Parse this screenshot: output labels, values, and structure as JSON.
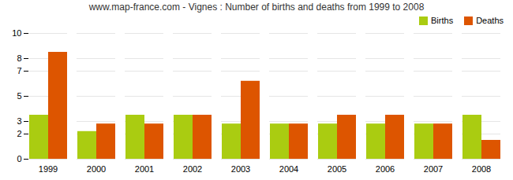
{
  "chart_data": {
    "type": "bar",
    "title": "www.map-france.com - Vignes : Number of births and deaths from 1999 to 2008",
    "categories": [
      "1999",
      "2000",
      "2001",
      "2002",
      "2003",
      "2004",
      "2005",
      "2006",
      "2007",
      "2008"
    ],
    "series": [
      {
        "name": "Births",
        "color": "#aacc11",
        "values": [
          3.5,
          2.2,
          3.5,
          3.5,
          2.8,
          2.8,
          2.8,
          2.8,
          2.8,
          3.5
        ]
      },
      {
        "name": "Deaths",
        "color": "#dd5500",
        "values": [
          8.5,
          2.8,
          2.8,
          3.5,
          6.2,
          2.8,
          3.5,
          3.5,
          2.8,
          1.5
        ]
      }
    ],
    "ylim": [
      0,
      10
    ],
    "yticks": [
      0,
      2,
      3,
      5,
      7,
      8,
      10
    ],
    "grid": true,
    "legend": "upper right"
  }
}
